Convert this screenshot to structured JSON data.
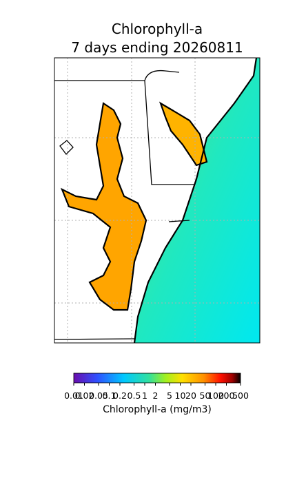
{
  "title": [
    "Chlorophyll-a",
    "7 days ending 20260811"
  ],
  "colorbar": {
    "label": "Chlorophyll-a (mg/m3)",
    "scale": "log",
    "lim": [
      0.01,
      500
    ],
    "ticks": [
      0.01,
      0.02,
      0.05,
      0.1,
      0.2,
      0.5,
      1,
      2,
      5,
      10,
      20,
      50,
      100,
      200,
      500
    ]
  }
}
